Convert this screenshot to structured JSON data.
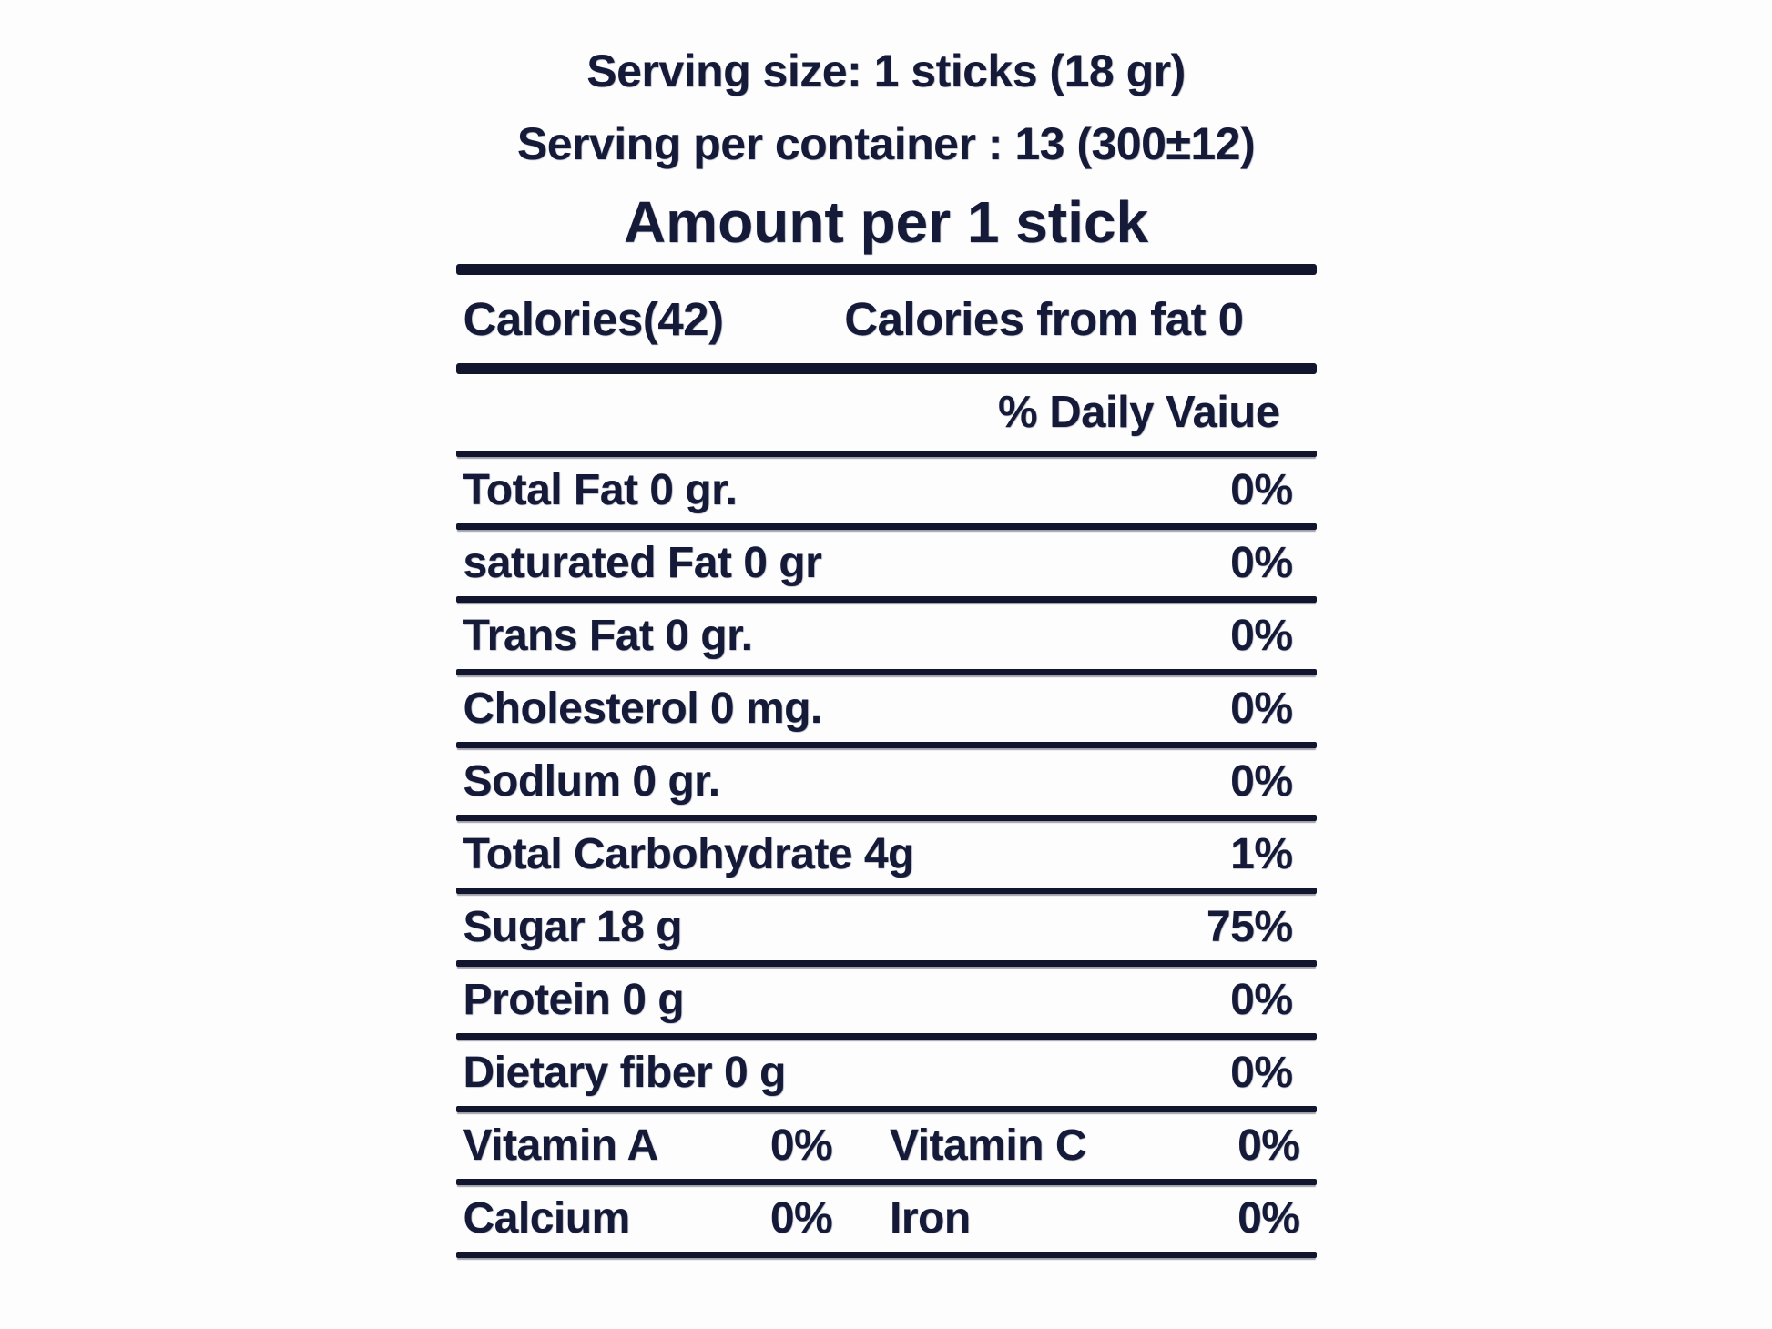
{
  "label": {
    "header": {
      "serving_size": "Serving size: 1 sticks (18 gr)",
      "servings_per_container": "Serving per container : 13 (300±12)",
      "amount_per": "Amount per 1 stick"
    },
    "calories_row": {
      "calories": "Calories(42)",
      "calories_from_fat": "Calories from fat 0"
    },
    "daily_value_header": "% Daily Vaiue",
    "rows": [
      {
        "label": "Total Fat 0 gr.",
        "value": "0%"
      },
      {
        "label": "saturated Fat 0 gr",
        "value": "0%"
      },
      {
        "label": "Trans Fat 0 gr.",
        "value": "0%"
      },
      {
        "label": "Cholesterol 0 mg.",
        "value": "0%"
      },
      {
        "label": "Sodlum 0 gr.",
        "value": "0%"
      },
      {
        "label": "Total Carbohydrate 4g",
        "value": "1%"
      },
      {
        "label": "Sugar 18 g",
        "value": "75%"
      },
      {
        "label": "Protein 0 g",
        "value": "0%"
      },
      {
        "label": "Dietary fiber 0 g",
        "value": "0%"
      }
    ],
    "micronutrients": [
      {
        "label": "Vitamin A",
        "value": "0%",
        "label2": "Vitamin C",
        "value2": "0%"
      },
      {
        "label": "Calcium",
        "value": "0%",
        "label2": "Iron",
        "value2": "0%"
      }
    ],
    "colors": {
      "ink": "#141a38",
      "background": "#fdfdfe"
    }
  }
}
